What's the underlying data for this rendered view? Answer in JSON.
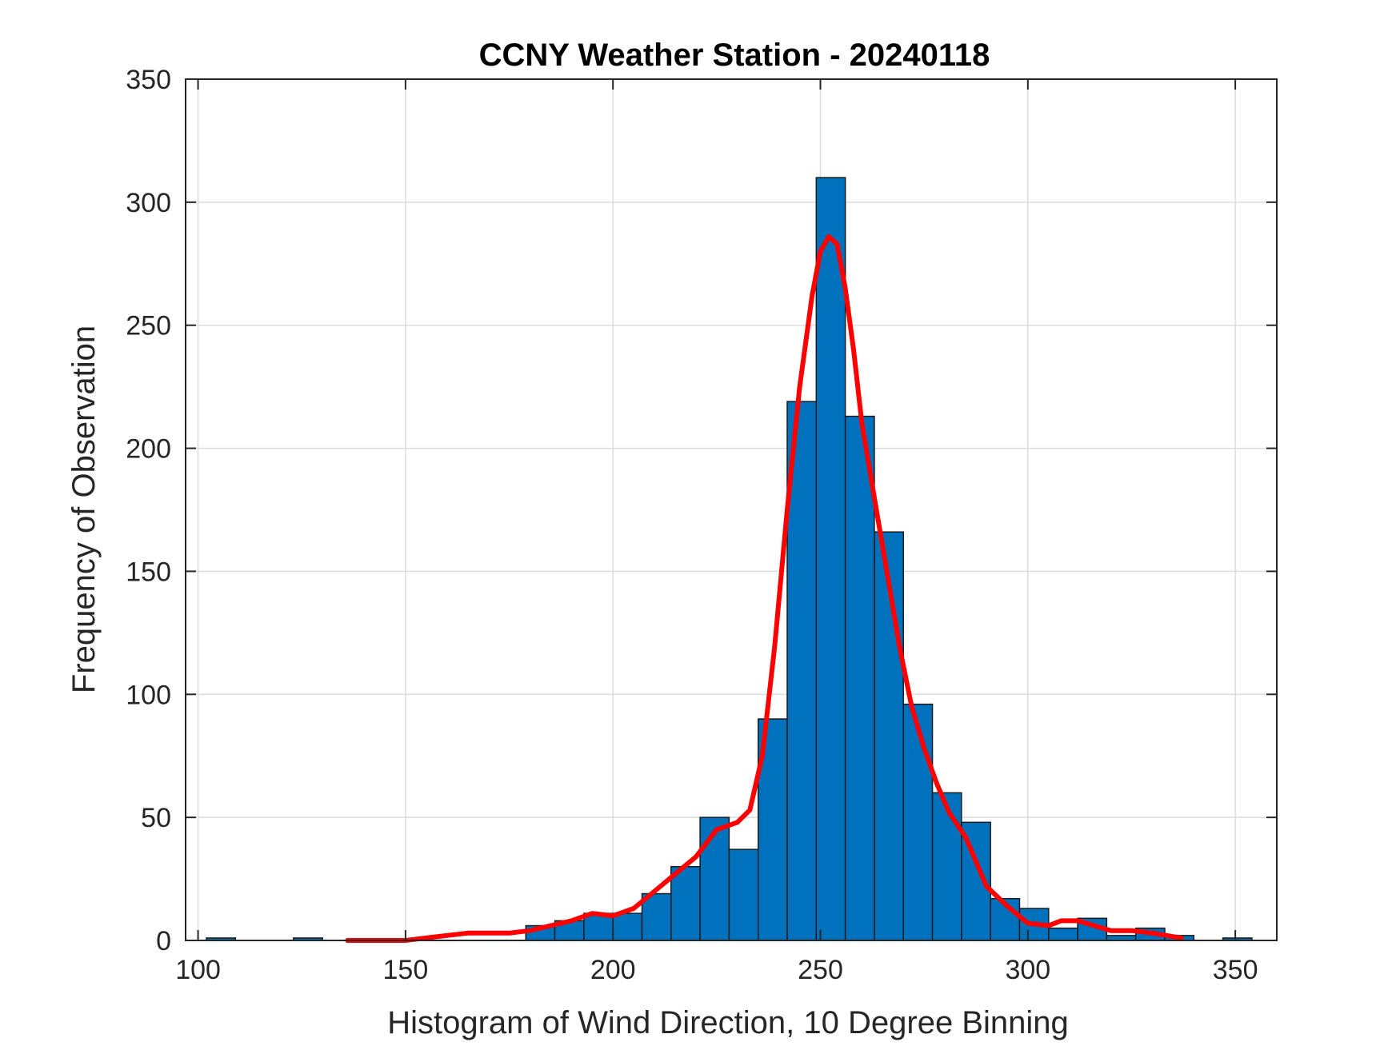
{
  "chart_data": {
    "type": "bar",
    "title": "CCNY Weather Station - 20240118",
    "xlabel": "Histogram of Wind Direction, 10 Degree Binning",
    "ylabel": "Frequency of Observation",
    "xlim": [
      97,
      360
    ],
    "ylim": [
      0,
      350
    ],
    "xticks": [
      100,
      150,
      200,
      250,
      300,
      350
    ],
    "yticks": [
      0,
      50,
      100,
      150,
      200,
      250,
      300,
      350
    ],
    "grid": true,
    "colors": {
      "bar": "#0072BD",
      "fit": "#FF0000"
    },
    "bins": [
      {
        "start": 102,
        "end": 109,
        "count": 1
      },
      {
        "start": 123,
        "end": 130,
        "count": 1
      },
      {
        "start": 179,
        "end": 186,
        "count": 6
      },
      {
        "start": 186,
        "end": 193,
        "count": 8
      },
      {
        "start": 193,
        "end": 200,
        "count": 11
      },
      {
        "start": 200,
        "end": 207,
        "count": 11
      },
      {
        "start": 207,
        "end": 214,
        "count": 19
      },
      {
        "start": 214,
        "end": 221,
        "count": 30
      },
      {
        "start": 221,
        "end": 228,
        "count": 50
      },
      {
        "start": 228,
        "end": 235,
        "count": 37
      },
      {
        "start": 235,
        "end": 242,
        "count": 90
      },
      {
        "start": 242,
        "end": 249,
        "count": 219
      },
      {
        "start": 249,
        "end": 256,
        "count": 310
      },
      {
        "start": 256,
        "end": 263,
        "count": 213
      },
      {
        "start": 263,
        "end": 270,
        "count": 166
      },
      {
        "start": 270,
        "end": 277,
        "count": 96
      },
      {
        "start": 277,
        "end": 284,
        "count": 60
      },
      {
        "start": 284,
        "end": 291,
        "count": 48
      },
      {
        "start": 291,
        "end": 298,
        "count": 17
      },
      {
        "start": 298,
        "end": 305,
        "count": 13
      },
      {
        "start": 305,
        "end": 312,
        "count": 5
      },
      {
        "start": 312,
        "end": 319,
        "count": 9
      },
      {
        "start": 319,
        "end": 326,
        "count": 2
      },
      {
        "start": 326,
        "end": 333,
        "count": 5
      },
      {
        "start": 333,
        "end": 340,
        "count": 2
      },
      {
        "start": 347,
        "end": 354,
        "count": 1
      }
    ],
    "fit_curve": {
      "x": [
        136,
        150,
        155,
        160,
        165,
        170,
        175,
        180,
        185,
        190,
        195,
        200,
        205,
        210,
        215,
        220,
        225,
        230,
        233,
        236,
        239,
        242,
        245,
        248,
        250,
        252,
        254,
        256,
        258,
        260,
        263,
        266,
        269,
        272,
        275,
        278,
        281,
        285,
        290,
        295,
        300,
        305,
        308,
        312,
        316,
        320,
        325,
        330,
        337
      ],
      "y": [
        0,
        0,
        1,
        2,
        3,
        3,
        3,
        4,
        6,
        8,
        11,
        10,
        13,
        20,
        27,
        34,
        45,
        48,
        53,
        75,
        120,
        175,
        225,
        262,
        280,
        286,
        283,
        265,
        240,
        210,
        180,
        150,
        120,
        95,
        78,
        64,
        52,
        42,
        22,
        14,
        7,
        6,
        8,
        8,
        6,
        4,
        4,
        3,
        1
      ]
    }
  }
}
